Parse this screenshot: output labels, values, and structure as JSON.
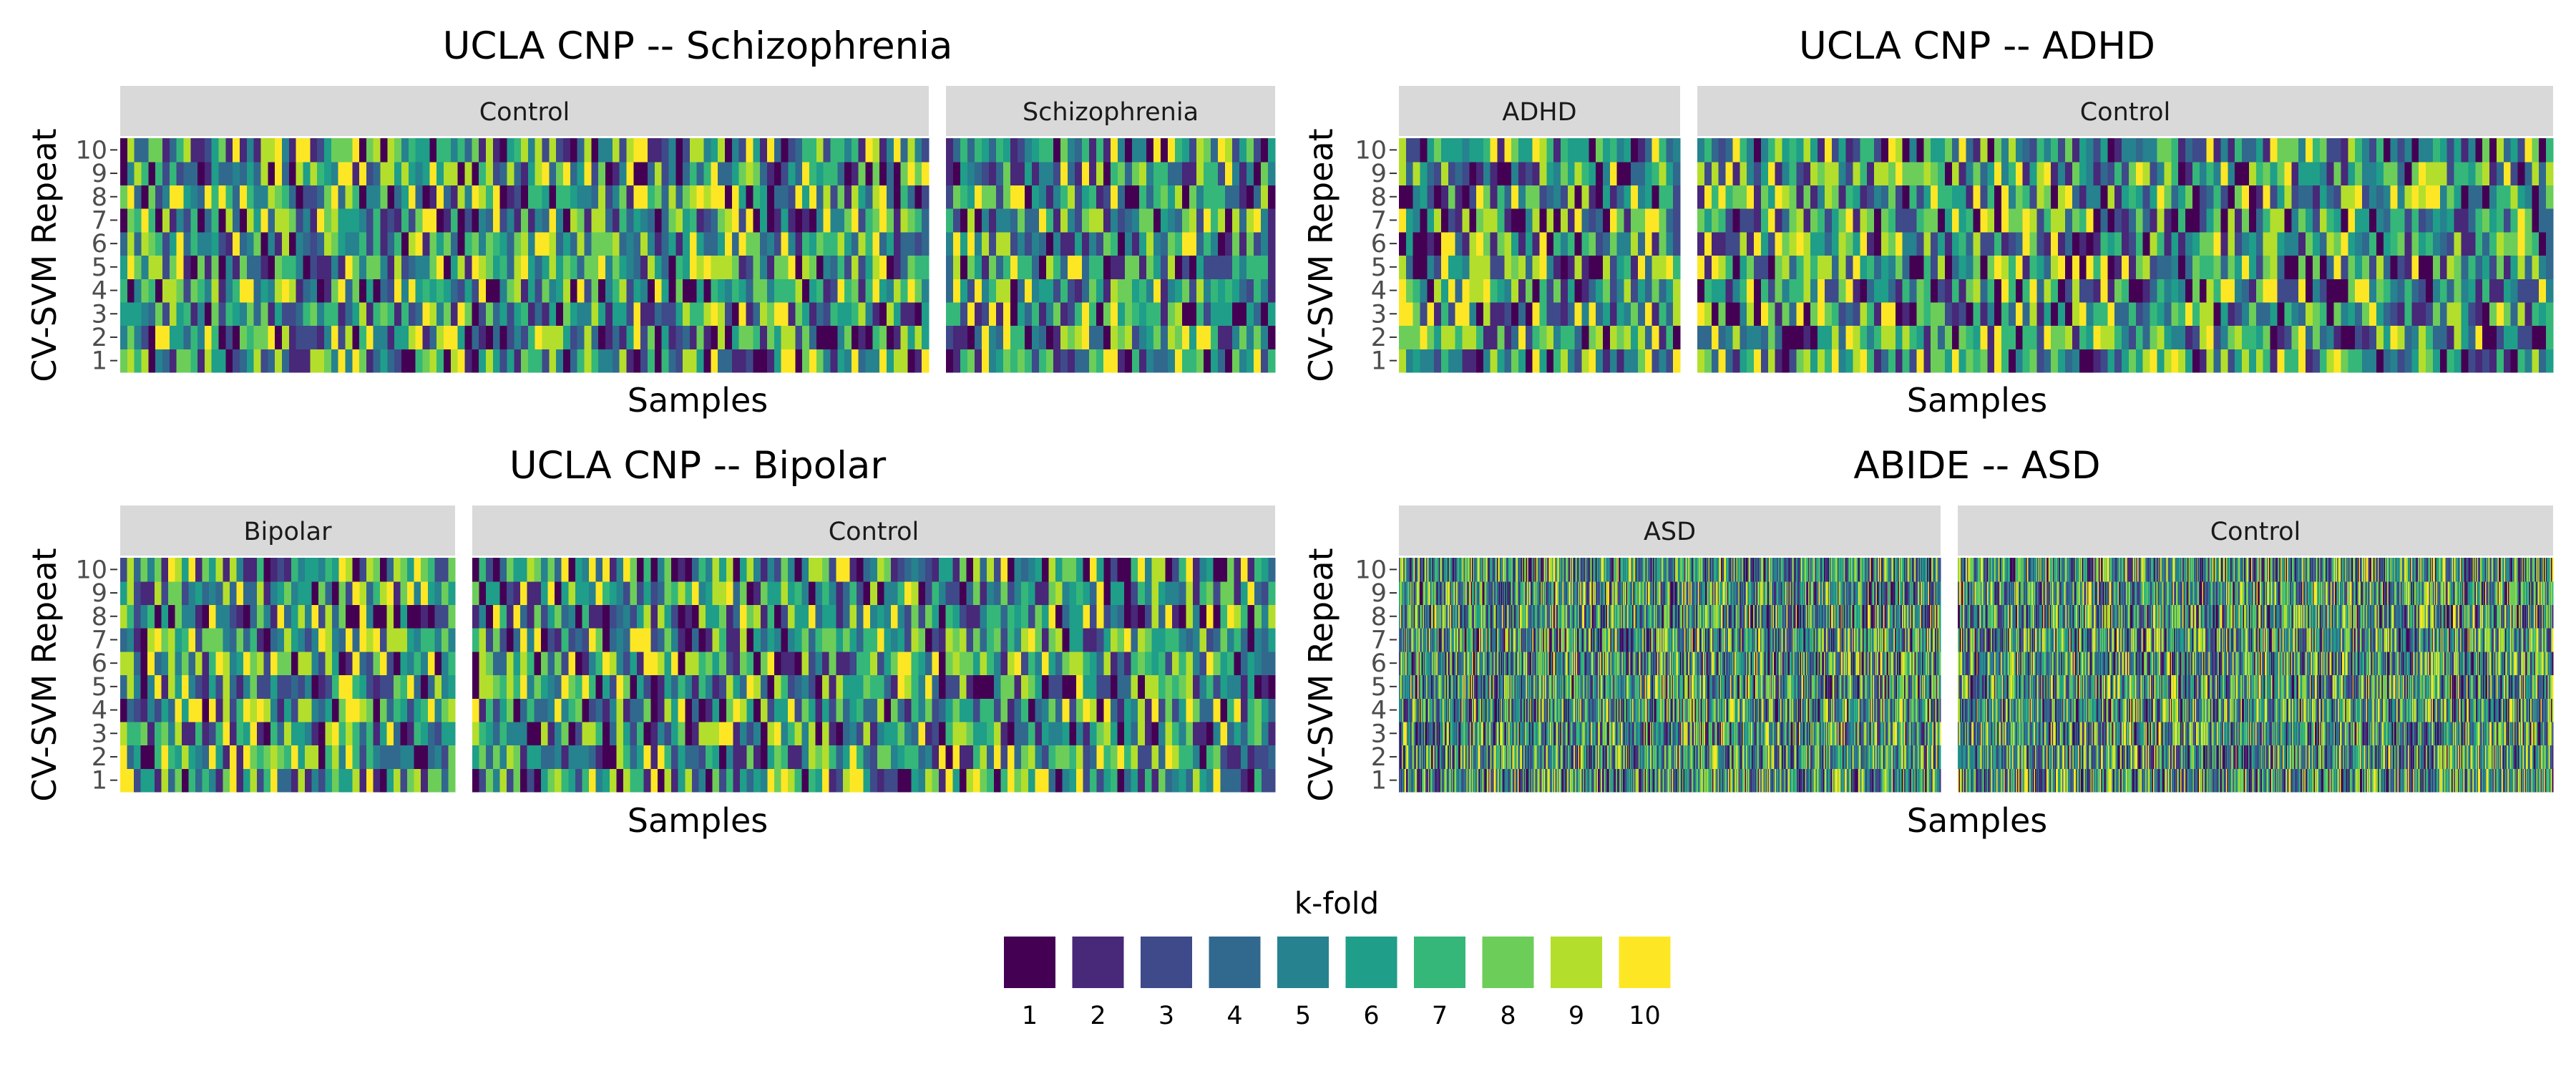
{
  "chart_data": [
    {
      "type": "heatmap",
      "title": "UCLA CNP -- Schizophrenia",
      "xlabel": "Samples",
      "ylabel": "CV-SVM Repeat",
      "y_ticks": [
        "1",
        "2",
        "3",
        "4",
        "5",
        "6",
        "7",
        "8",
        "9",
        "10"
      ],
      "facets": [
        {
          "label": "Control",
          "n_samples": 115
        },
        {
          "label": "Schizophrenia",
          "n_samples": 46
        }
      ]
    },
    {
      "type": "heatmap",
      "title": "UCLA CNP -- ADHD",
      "xlabel": "Samples",
      "ylabel": "CV-SVM Repeat",
      "y_ticks": [
        "1",
        "2",
        "3",
        "4",
        "5",
        "6",
        "7",
        "8",
        "9",
        "10"
      ],
      "facets": [
        {
          "label": "ADHD",
          "n_samples": 40
        },
        {
          "label": "Control",
          "n_samples": 121
        }
      ]
    },
    {
      "type": "heatmap",
      "title": "UCLA CNP -- Bipolar",
      "xlabel": "Samples",
      "ylabel": "CV-SVM Repeat",
      "y_ticks": [
        "1",
        "2",
        "3",
        "4",
        "5",
        "6",
        "7",
        "8",
        "9",
        "10"
      ],
      "facets": [
        {
          "label": "Bipolar",
          "n_samples": 49
        },
        {
          "label": "Control",
          "n_samples": 117
        }
      ]
    },
    {
      "type": "heatmap",
      "title": "ABIDE -- ASD",
      "xlabel": "Samples",
      "ylabel": "CV-SVM Repeat",
      "y_ticks": [
        "1",
        "2",
        "3",
        "4",
        "5",
        "6",
        "7",
        "8",
        "9",
        "10"
      ],
      "facets": [
        {
          "label": "ASD",
          "n_samples": 520
        },
        {
          "label": "Control",
          "n_samples": 570
        }
      ]
    }
  ],
  "legend": {
    "title": "k-fold",
    "entries": [
      {
        "label": "1",
        "color": "#440154"
      },
      {
        "label": "2",
        "color": "#482878"
      },
      {
        "label": "3",
        "color": "#3E4A89"
      },
      {
        "label": "4",
        "color": "#31688E"
      },
      {
        "label": "5",
        "color": "#26828E"
      },
      {
        "label": "6",
        "color": "#1F9E89"
      },
      {
        "label": "7",
        "color": "#35B779"
      },
      {
        "label": "8",
        "color": "#6DCD59"
      },
      {
        "label": "9",
        "color": "#B4DE2C"
      },
      {
        "label": "10",
        "color": "#FDE725"
      }
    ]
  },
  "colors": {
    "strip_background": "#d9d9d9",
    "text": "#000000",
    "tick_text": "#4d4d4d"
  }
}
